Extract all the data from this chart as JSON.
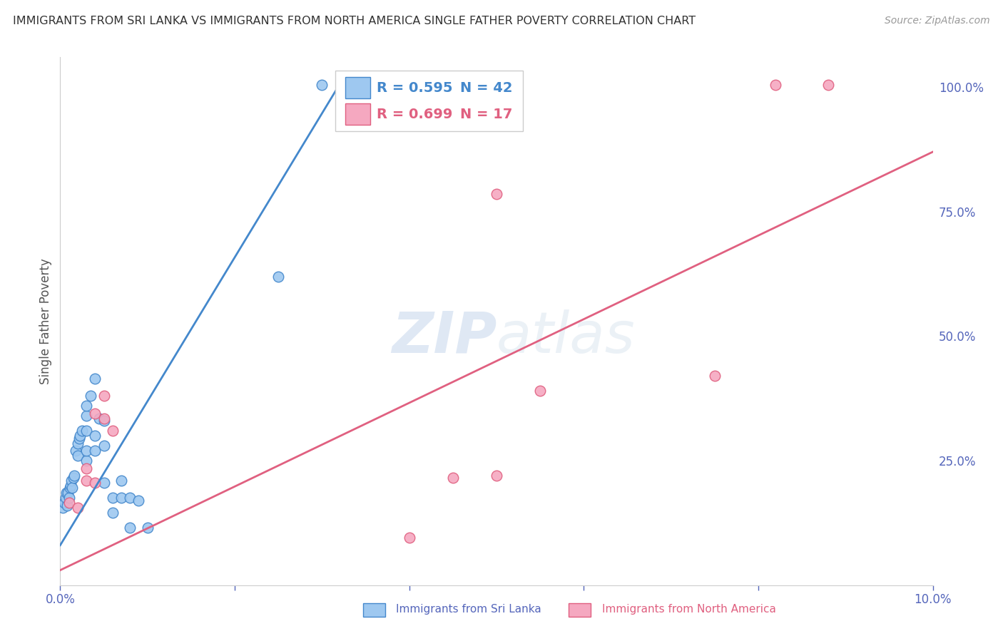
{
  "title": "IMMIGRANTS FROM SRI LANKA VS IMMIGRANTS FROM NORTH AMERICA SINGLE FATHER POVERTY CORRELATION CHART",
  "source": "Source: ZipAtlas.com",
  "ylabel": "Single Father Poverty",
  "blue_label": "Immigrants from Sri Lanka",
  "pink_label": "Immigrants from North America",
  "blue_R": 0.595,
  "blue_N": 42,
  "pink_R": 0.699,
  "pink_N": 17,
  "xlim": [
    0.0,
    0.1
  ],
  "ylim": [
    0.0,
    1.06
  ],
  "blue_color": "#9EC8F0",
  "pink_color": "#F5A8C0",
  "blue_edge_color": "#4488CC",
  "pink_edge_color": "#E06080",
  "blue_line_color": "#4488CC",
  "pink_line_color": "#E06080",
  "blue_points": [
    [
      0.0003,
      0.155
    ],
    [
      0.0005,
      0.165
    ],
    [
      0.0006,
      0.175
    ],
    [
      0.0007,
      0.185
    ],
    [
      0.0008,
      0.16
    ],
    [
      0.0009,
      0.185
    ],
    [
      0.001,
      0.175
    ],
    [
      0.0011,
      0.195
    ],
    [
      0.0012,
      0.2
    ],
    [
      0.0013,
      0.21
    ],
    [
      0.0014,
      0.195
    ],
    [
      0.0015,
      0.215
    ],
    [
      0.0016,
      0.22
    ],
    [
      0.0018,
      0.27
    ],
    [
      0.002,
      0.26
    ],
    [
      0.002,
      0.285
    ],
    [
      0.0022,
      0.295
    ],
    [
      0.0023,
      0.3
    ],
    [
      0.0025,
      0.31
    ],
    [
      0.003,
      0.25
    ],
    [
      0.003,
      0.27
    ],
    [
      0.003,
      0.31
    ],
    [
      0.003,
      0.34
    ],
    [
      0.003,
      0.36
    ],
    [
      0.0035,
      0.38
    ],
    [
      0.004,
      0.27
    ],
    [
      0.004,
      0.3
    ],
    [
      0.004,
      0.415
    ],
    [
      0.0045,
      0.335
    ],
    [
      0.005,
      0.205
    ],
    [
      0.005,
      0.28
    ],
    [
      0.005,
      0.33
    ],
    [
      0.006,
      0.145
    ],
    [
      0.006,
      0.175
    ],
    [
      0.007,
      0.175
    ],
    [
      0.007,
      0.21
    ],
    [
      0.008,
      0.115
    ],
    [
      0.008,
      0.175
    ],
    [
      0.009,
      0.17
    ],
    [
      0.01,
      0.115
    ],
    [
      0.025,
      0.62
    ],
    [
      0.03,
      1.005
    ]
  ],
  "pink_points": [
    [
      0.001,
      0.165
    ],
    [
      0.002,
      0.155
    ],
    [
      0.003,
      0.21
    ],
    [
      0.003,
      0.235
    ],
    [
      0.004,
      0.205
    ],
    [
      0.004,
      0.345
    ],
    [
      0.005,
      0.38
    ],
    [
      0.005,
      0.335
    ],
    [
      0.006,
      0.31
    ],
    [
      0.04,
      0.095
    ],
    [
      0.045,
      0.215
    ],
    [
      0.05,
      0.22
    ],
    [
      0.05,
      0.785
    ],
    [
      0.055,
      0.39
    ],
    [
      0.075,
      0.42
    ],
    [
      0.082,
      1.005
    ],
    [
      0.088,
      1.005
    ]
  ],
  "blue_line_x": [
    0.0,
    0.032
  ],
  "blue_line_y": [
    0.08,
    1.005
  ],
  "pink_line_x": [
    0.0,
    0.1
  ],
  "pink_line_y": [
    0.03,
    0.87
  ],
  "watermark_zip": "ZIP",
  "watermark_atlas": "atlas",
  "right_yticks": [
    0.0,
    0.25,
    0.5,
    0.75,
    1.0
  ],
  "right_yticklabels": [
    "",
    "25.0%",
    "50.0%",
    "75.0%",
    "100.0%"
  ],
  "xticks": [
    0.0,
    0.02,
    0.04,
    0.06,
    0.08,
    0.1
  ],
  "xticklabels": [
    "0.0%",
    "",
    "",
    "",
    "",
    "10.0%"
  ],
  "grid_color": "#d0d0d0",
  "background_color": "#ffffff",
  "title_color": "#333333",
  "axis_color": "#5566bb",
  "tick_color": "#888888"
}
